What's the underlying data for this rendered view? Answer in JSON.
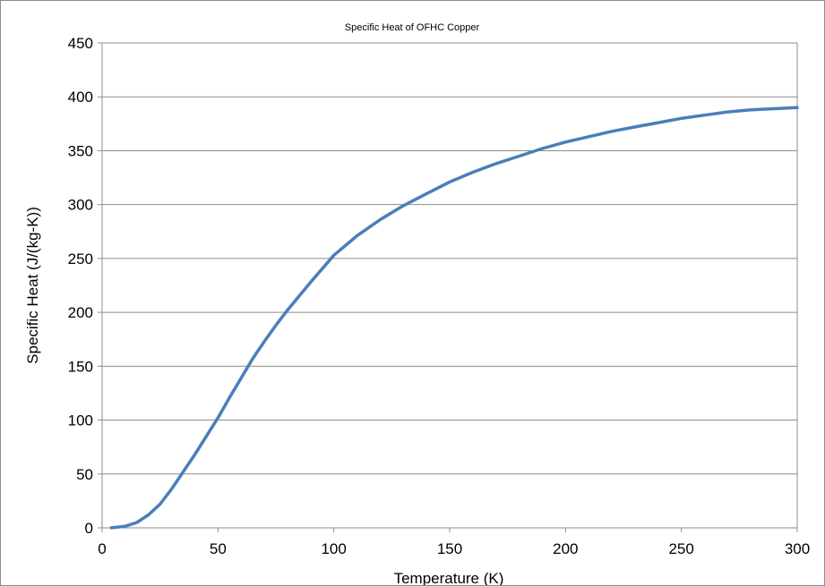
{
  "chart_data": {
    "type": "line",
    "title": "Specific Heat of OFHC Copper",
    "xlabel": "Temperature (K)",
    "ylabel": "Specific Heat (J/(kg-K))",
    "xlim": [
      0,
      300
    ],
    "ylim": [
      0,
      450
    ],
    "xticks": [
      0,
      50,
      100,
      150,
      200,
      250,
      300
    ],
    "yticks": [
      0,
      50,
      100,
      150,
      200,
      250,
      300,
      350,
      400,
      450
    ],
    "grid": "horizontal",
    "legend": "none",
    "series_color": "#4a7ebb",
    "series": [
      {
        "x": [
          4,
          10,
          15,
          20,
          25,
          30,
          35,
          40,
          45,
          50,
          55,
          60,
          65,
          70,
          75,
          80,
          90,
          100,
          110,
          120,
          130,
          140,
          150,
          160,
          170,
          180,
          190,
          200,
          210,
          220,
          230,
          240,
          250,
          260,
          270,
          280,
          290,
          300
        ],
        "y": [
          0.1,
          1.5,
          5,
          12,
          22,
          36,
          52,
          68,
          85,
          102,
          121,
          139,
          157,
          173,
          188,
          202,
          228,
          253,
          271,
          286,
          299,
          310,
          321,
          330,
          338,
          345,
          352,
          358,
          363,
          368,
          372,
          376,
          380,
          383,
          386,
          388,
          389,
          390
        ]
      }
    ]
  }
}
